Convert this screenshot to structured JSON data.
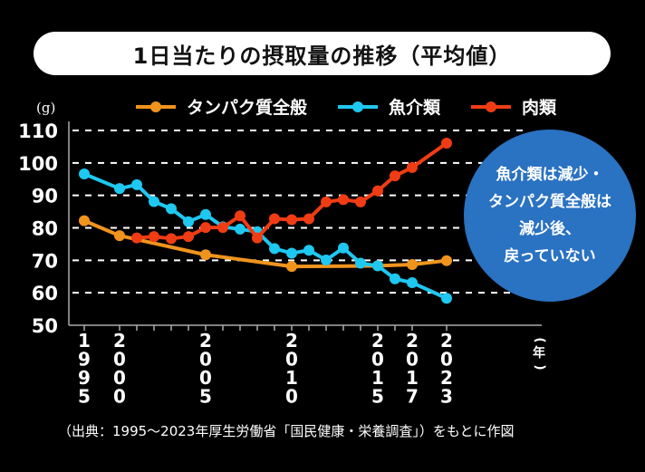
{
  "title": "1日当たりの摂取量の推移（平均値）",
  "legend": [
    {
      "label": "タンパク質全般",
      "color": "#f0941e"
    },
    {
      "label": "魚介類",
      "color": "#1ec8f0"
    },
    {
      "label": "肉類",
      "color": "#f03c14"
    }
  ],
  "callout": {
    "lines": [
      "魚介類は減少・",
      "タンパク質全般は",
      "減少後、",
      "戻っていない"
    ],
    "color": "#2a72c2"
  },
  "source": "（出典：1995～2023年厚生労働省「国民健康・栄養調査」）をもとに作図",
  "chart_data": {
    "type": "line",
    "title": "1日当たりの摂取量の推移（平均値）",
    "xlabel": "（年）",
    "ylabel": "(g)",
    "ylim": [
      50,
      110
    ],
    "yticks": [
      50,
      60,
      70,
      80,
      90,
      100,
      110
    ],
    "grid": true,
    "legend_position": "top",
    "x": [
      1995,
      2000,
      2001,
      2002,
      2003,
      2004,
      2005,
      2006,
      2007,
      2008,
      2009,
      2010,
      2011,
      2012,
      2013,
      2014,
      2015,
      2016,
      2017,
      2023
    ],
    "xtick_labels": [
      "1995",
      "2000",
      "2005",
      "2010",
      "2015",
      "2017",
      "2023"
    ],
    "series": [
      {
        "name": "タンパク質全般",
        "color": "#f0941e",
        "points": [
          [
            1995,
            82.2
          ],
          [
            2000,
            77.6
          ],
          [
            2005,
            71.7
          ],
          [
            2010,
            68.1
          ],
          [
            2015,
            68.3
          ],
          [
            2017,
            68.7
          ],
          [
            2023,
            69.9
          ]
        ]
      },
      {
        "name": "魚介類",
        "color": "#1ec8f0",
        "points": [
          [
            1995,
            96.6
          ],
          [
            2000,
            92.1
          ],
          [
            2001,
            93.3
          ],
          [
            2002,
            88.1
          ],
          [
            2003,
            85.9
          ],
          [
            2004,
            81.9
          ],
          [
            2005,
            84.1
          ],
          [
            2006,
            80.3
          ],
          [
            2007,
            79.6
          ],
          [
            2008,
            78.8
          ],
          [
            2009,
            73.6
          ],
          [
            2010,
            72.2
          ],
          [
            2011,
            73.1
          ],
          [
            2012,
            70.1
          ],
          [
            2013,
            73.8
          ],
          [
            2014,
            69.1
          ],
          [
            2015,
            68.3
          ],
          [
            2016,
            64.3
          ],
          [
            2017,
            63.1
          ],
          [
            2023,
            58.3
          ]
        ]
      },
      {
        "name": "肉類",
        "color": "#f03c14",
        "points": [
          [
            2001,
            76.9
          ],
          [
            2002,
            77.3
          ],
          [
            2003,
            76.7
          ],
          [
            2004,
            77.3
          ],
          [
            2005,
            80.1
          ],
          [
            2006,
            80.1
          ],
          [
            2007,
            83.7
          ],
          [
            2008,
            76.9
          ],
          [
            2009,
            82.8
          ],
          [
            2010,
            82.5
          ],
          [
            2011,
            82.8
          ],
          [
            2012,
            88.0
          ],
          [
            2013,
            88.7
          ],
          [
            2014,
            88.0
          ],
          [
            2015,
            91.4
          ],
          [
            2016,
            96.0
          ],
          [
            2017,
            98.6
          ],
          [
            2023,
            106.1
          ]
        ]
      }
    ]
  }
}
